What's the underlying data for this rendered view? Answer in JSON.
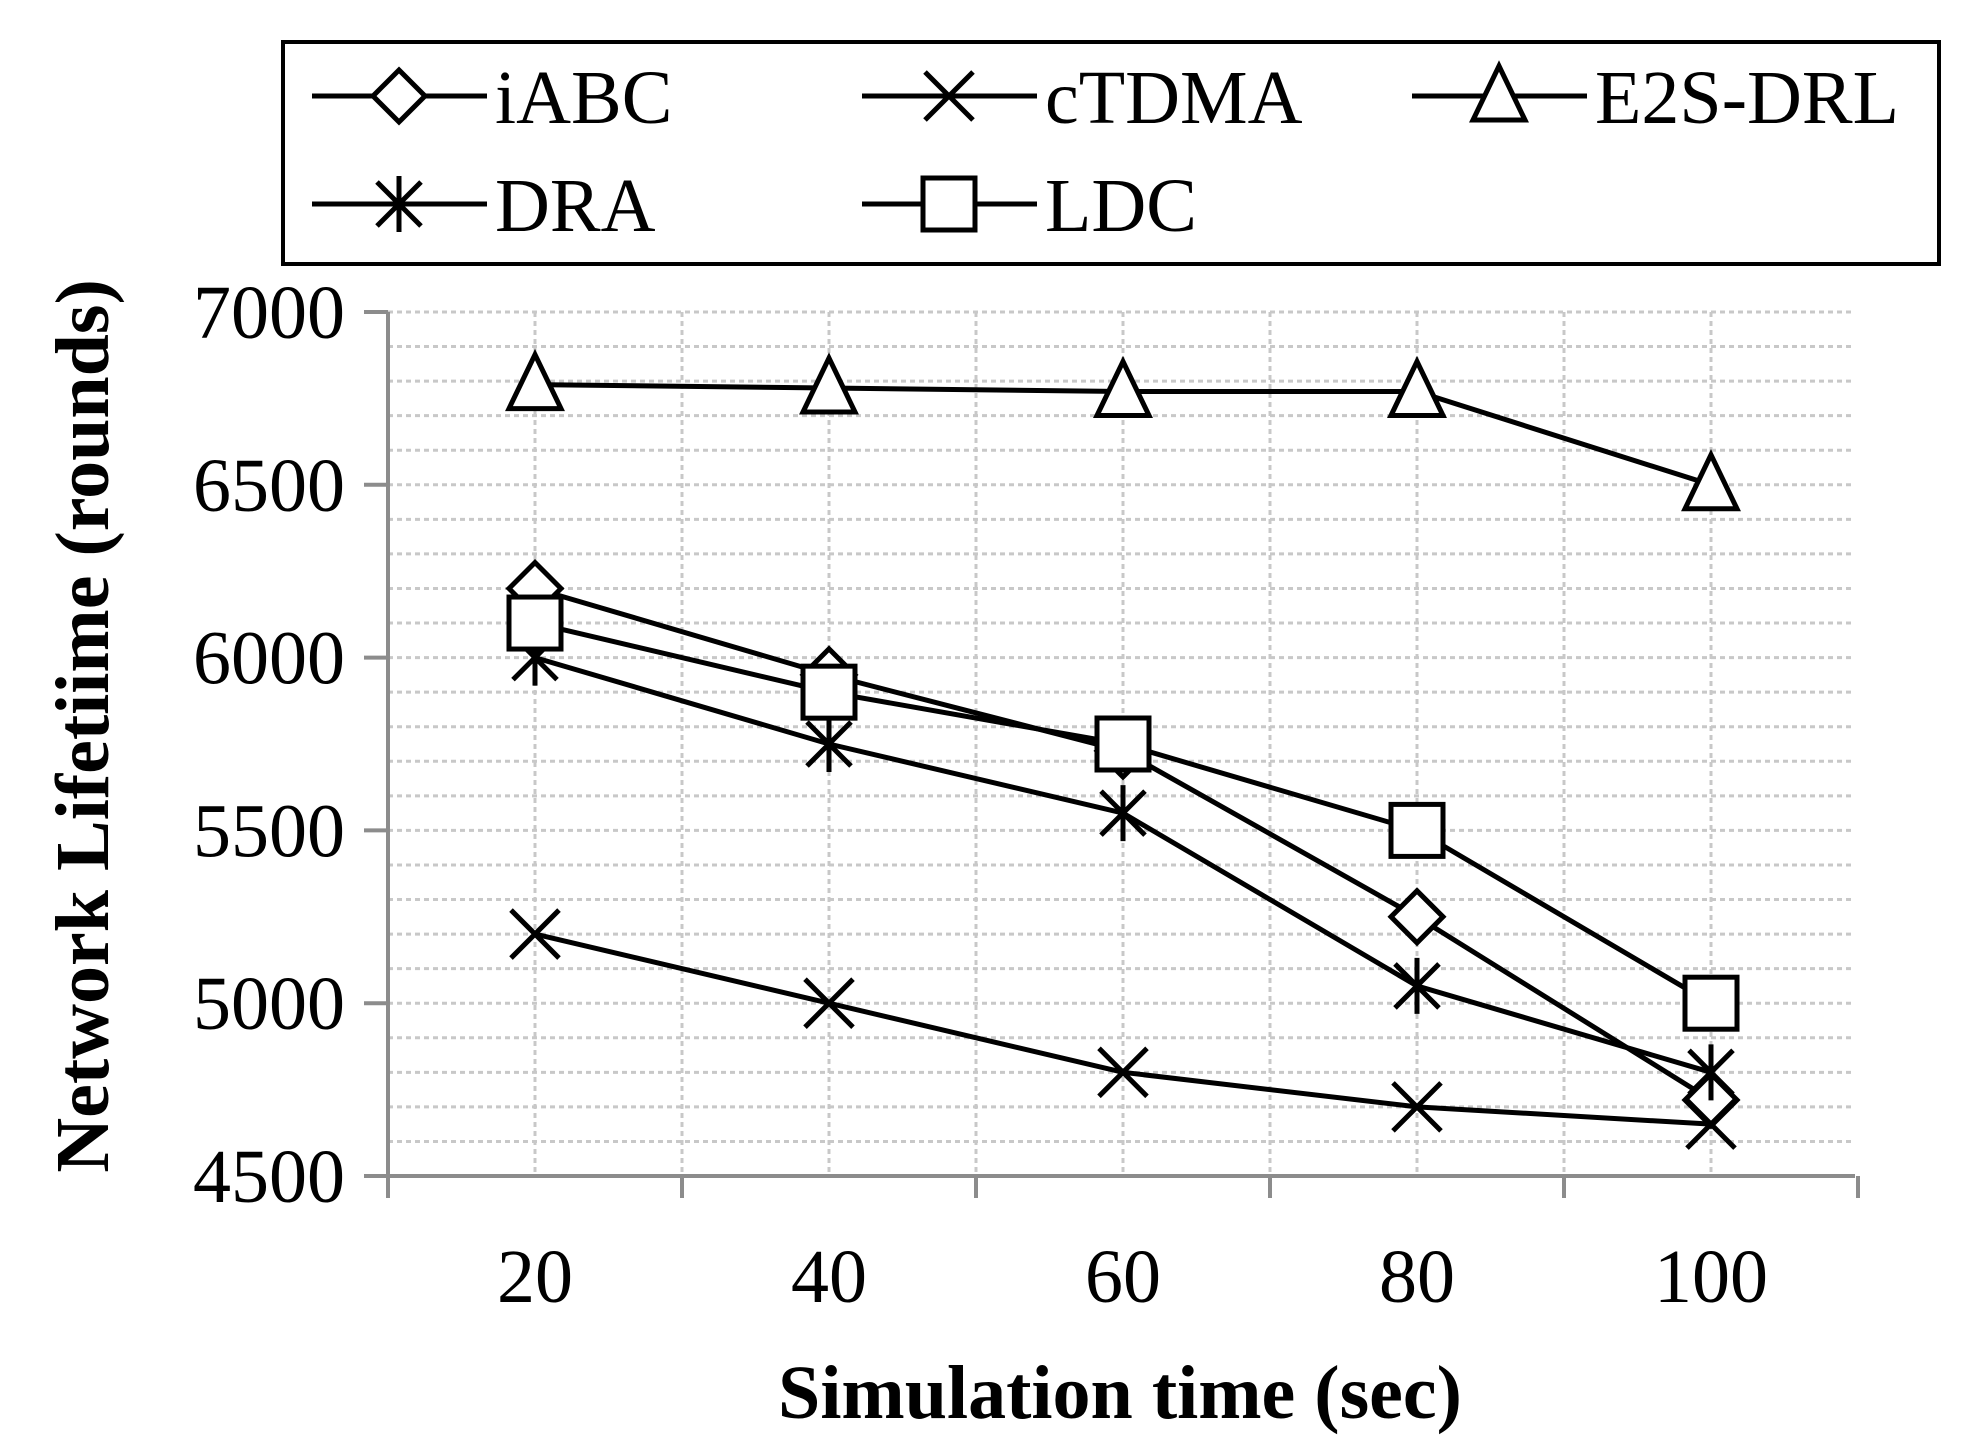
{
  "chart_data": {
    "type": "line",
    "title": "",
    "xlabel": "Simulation time (sec)",
    "ylabel": "Network Lifetiime (rounds)",
    "x": [
      20,
      40,
      60,
      80,
      100
    ],
    "categories": [
      "20",
      "40",
      "60",
      "80",
      "100"
    ],
    "ylim": [
      4500,
      7000
    ],
    "yticks": [
      "4500",
      "5000",
      "5500",
      "6000",
      "6500",
      "7000"
    ],
    "ytick_values": [
      4500,
      5000,
      5500,
      6000,
      6500,
      7000
    ],
    "grid": true,
    "legend_position": "top",
    "series": [
      {
        "name": "iABC",
        "marker": "diamond",
        "values": [
          6200,
          5950,
          5730,
          5250,
          4720
        ]
      },
      {
        "name": "cTDMA",
        "marker": "x",
        "values": [
          5200,
          5000,
          4800,
          4700,
          4650
        ]
      },
      {
        "name": "E2S-DRL",
        "marker": "triangle",
        "values": [
          6790,
          6780,
          6770,
          6770,
          6500
        ]
      },
      {
        "name": "DRA",
        "marker": "star",
        "values": [
          6000,
          5750,
          5550,
          5050,
          4800
        ]
      },
      {
        "name": "LDC",
        "marker": "square",
        "values": [
          6100,
          5900,
          5750,
          5500,
          5000
        ]
      }
    ]
  }
}
